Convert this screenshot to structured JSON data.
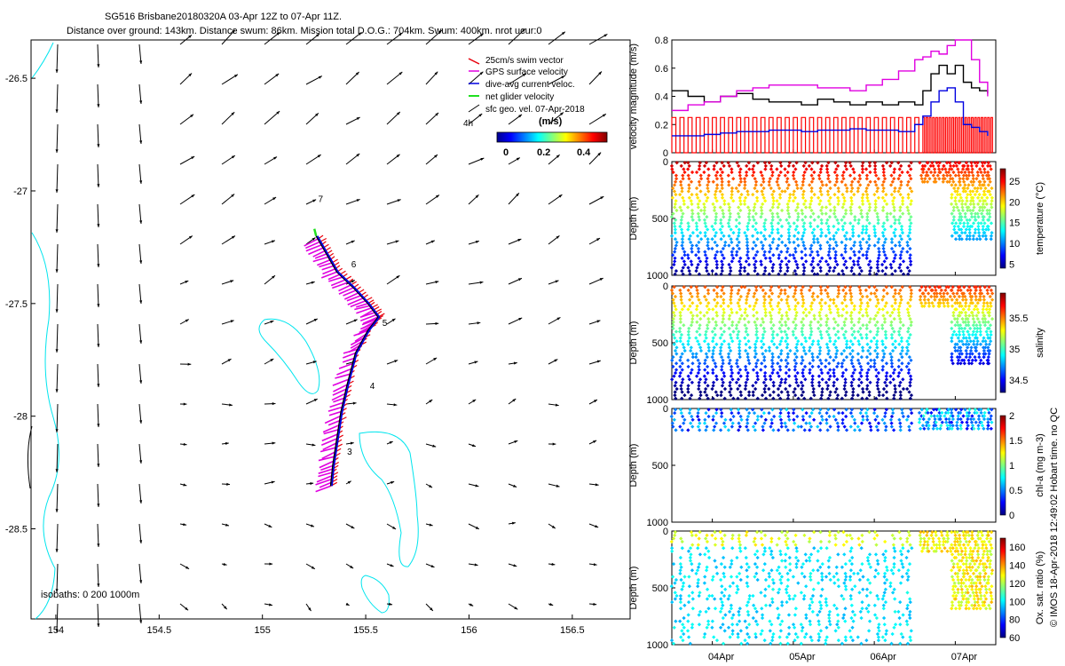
{
  "header": {
    "title_line1": "SG516 Brisbane20180320A 03-Apr 12Z to 07-Apr 11Z.",
    "title_line2": "Distance over ground: 143km. Distance swum: 86km. Mission total D.O.G.: 704km. Swum: 400km. nrot ucur:0"
  },
  "colors": {
    "swim_vector": "#e8000b",
    "gps_surface_velocity": "#e000e0",
    "dive_avg_current": "#0000e0",
    "net_glider_velocity": "#20e020",
    "sfc_geo_vel": "#000000",
    "isobath": "#00e5ee",
    "cast_line": "#ff0000"
  },
  "map": {
    "xlim": [
      153.88,
      156.78
    ],
    "ylim": [
      -28.9,
      -26.33
    ],
    "xticks": [
      "154",
      "154.5",
      "155",
      "155.5",
      "156",
      "156.5"
    ],
    "yticks": [
      "-26.5",
      "-27",
      "-27.5",
      "-28",
      "-28.5"
    ],
    "legend": {
      "swim_vector": "25cm/s swim vector",
      "gps_surface": "GPS surface velocity",
      "dive_avg": "dive-avg current veloc.",
      "net_glider": "net glider velocity",
      "sfc_geo": "sfc geo. vel. 07-Apr-2018",
      "sfc_geo_scale": "4h"
    },
    "colorbar": {
      "label": "(m/s)",
      "ticks": [
        "0",
        "0.2",
        "0.4"
      ]
    },
    "isobaths_label": "isobaths: 0   200  1000m",
    "day_markers": [
      {
        "label": "7",
        "lon": 155.27,
        "lat": -27.05
      },
      {
        "label": "6",
        "lon": 155.43,
        "lat": -27.34
      },
      {
        "label": "5",
        "lon": 155.58,
        "lat": -27.6
      },
      {
        "label": "4",
        "lon": 155.52,
        "lat": -27.88
      },
      {
        "label": "3",
        "lon": 155.41,
        "lat": -28.17
      }
    ],
    "glider_track": [
      [
        155.33,
        -28.31
      ],
      [
        155.34,
        -28.22
      ],
      [
        155.36,
        -28.1
      ],
      [
        155.38,
        -27.98
      ],
      [
        155.41,
        -27.86
      ],
      [
        155.45,
        -27.72
      ],
      [
        155.51,
        -27.62
      ],
      [
        155.56,
        -27.56
      ],
      [
        155.51,
        -27.5
      ],
      [
        155.44,
        -27.43
      ],
      [
        155.36,
        -27.36
      ],
      [
        155.31,
        -27.28
      ],
      [
        155.26,
        -27.2
      ]
    ]
  },
  "right": {
    "x_ticks": [
      "04Apr",
      "05Apr",
      "06Apr",
      "07Apr"
    ],
    "copyright": "© IMOS 18-Apr-2018 12:49:02 Hobart time. no QC"
  },
  "chart_data": [
    {
      "type": "line",
      "ylabel": "velocity magnitude (m/s)",
      "ylim": [
        0,
        0.8
      ],
      "yticks": [
        "0",
        "0.2",
        "0.4",
        "0.6",
        "0.8"
      ],
      "x_range_days": [
        3.5,
        7.5
      ],
      "series": [
        {
          "color": "#000000",
          "x": [
            3.5,
            3.7,
            3.9,
            4.1,
            4.3,
            4.5,
            4.7,
            4.9,
            5.1,
            5.3,
            5.5,
            5.7,
            5.9,
            6.1,
            6.3,
            6.5,
            6.6,
            6.7,
            6.8,
            6.9,
            7.0,
            7.1,
            7.2,
            7.3,
            7.4
          ],
          "y": [
            0.44,
            0.4,
            0.36,
            0.4,
            0.42,
            0.38,
            0.36,
            0.36,
            0.34,
            0.38,
            0.36,
            0.34,
            0.36,
            0.34,
            0.36,
            0.34,
            0.44,
            0.56,
            0.62,
            0.56,
            0.62,
            0.5,
            0.46,
            0.44,
            0.42
          ]
        },
        {
          "color": "#e000e0",
          "x": [
            3.5,
            3.7,
            3.9,
            4.1,
            4.3,
            4.5,
            4.7,
            4.9,
            5.1,
            5.3,
            5.5,
            5.7,
            5.9,
            6.1,
            6.3,
            6.5,
            6.6,
            6.7,
            6.8,
            6.9,
            7.0,
            7.1,
            7.2,
            7.3,
            7.4
          ],
          "y": [
            0.3,
            0.34,
            0.36,
            0.4,
            0.44,
            0.46,
            0.48,
            0.48,
            0.48,
            0.46,
            0.46,
            0.44,
            0.48,
            0.52,
            0.58,
            0.66,
            0.68,
            0.72,
            0.7,
            0.76,
            0.8,
            0.8,
            0.66,
            0.5,
            0.4
          ]
        },
        {
          "color": "#0000e0",
          "x": [
            3.5,
            3.7,
            3.9,
            4.1,
            4.3,
            4.5,
            4.7,
            4.9,
            5.1,
            5.3,
            5.5,
            5.7,
            5.9,
            6.1,
            6.3,
            6.5,
            6.6,
            6.7,
            6.8,
            6.9,
            7.0,
            7.1,
            7.2,
            7.3,
            7.4
          ],
          "y": [
            0.12,
            0.12,
            0.13,
            0.14,
            0.15,
            0.15,
            0.16,
            0.16,
            0.15,
            0.16,
            0.16,
            0.17,
            0.16,
            0.16,
            0.15,
            0.2,
            0.26,
            0.36,
            0.44,
            0.46,
            0.36,
            0.2,
            0.18,
            0.15,
            0.12
          ]
        }
      ]
    },
    {
      "type": "scatter",
      "ylabel": "Depth (m)",
      "colorbar_label": "temperature (°C)",
      "colorbar_ticks": [
        "5",
        "10",
        "15",
        "20",
        "25"
      ],
      "clim": [
        4,
        28
      ],
      "ylim": [
        1000,
        0
      ],
      "yticks": [
        "0",
        "500",
        "1000"
      ]
    },
    {
      "type": "scatter",
      "ylabel": "Depth (m)",
      "colorbar_label": "salinity",
      "colorbar_ticks": [
        "34.5",
        "35",
        "35.5"
      ],
      "clim": [
        34.3,
        35.9
      ],
      "ylim": [
        1000,
        0
      ],
      "yticks": [
        "0",
        "500",
        "1000"
      ]
    },
    {
      "type": "scatter",
      "ylabel": "Depth (m)",
      "colorbar_label": "chl-a (mg m-3)",
      "colorbar_ticks": [
        "0",
        "0.5",
        "1",
        "1.5",
        "2"
      ],
      "clim": [
        0,
        2
      ],
      "ylim": [
        1000,
        0
      ],
      "yticks": [
        "0",
        "500",
        "1000"
      ]
    },
    {
      "type": "scatter",
      "ylabel": "Depth (m)",
      "colorbar_label": "Ox. sat. ratio (%)",
      "colorbar_ticks": [
        "60",
        "80",
        "100",
        "120",
        "140",
        "160"
      ],
      "clim": [
        60,
        170
      ],
      "ylim": [
        1000,
        0
      ],
      "yticks": [
        "0",
        "500",
        "1000"
      ]
    }
  ]
}
